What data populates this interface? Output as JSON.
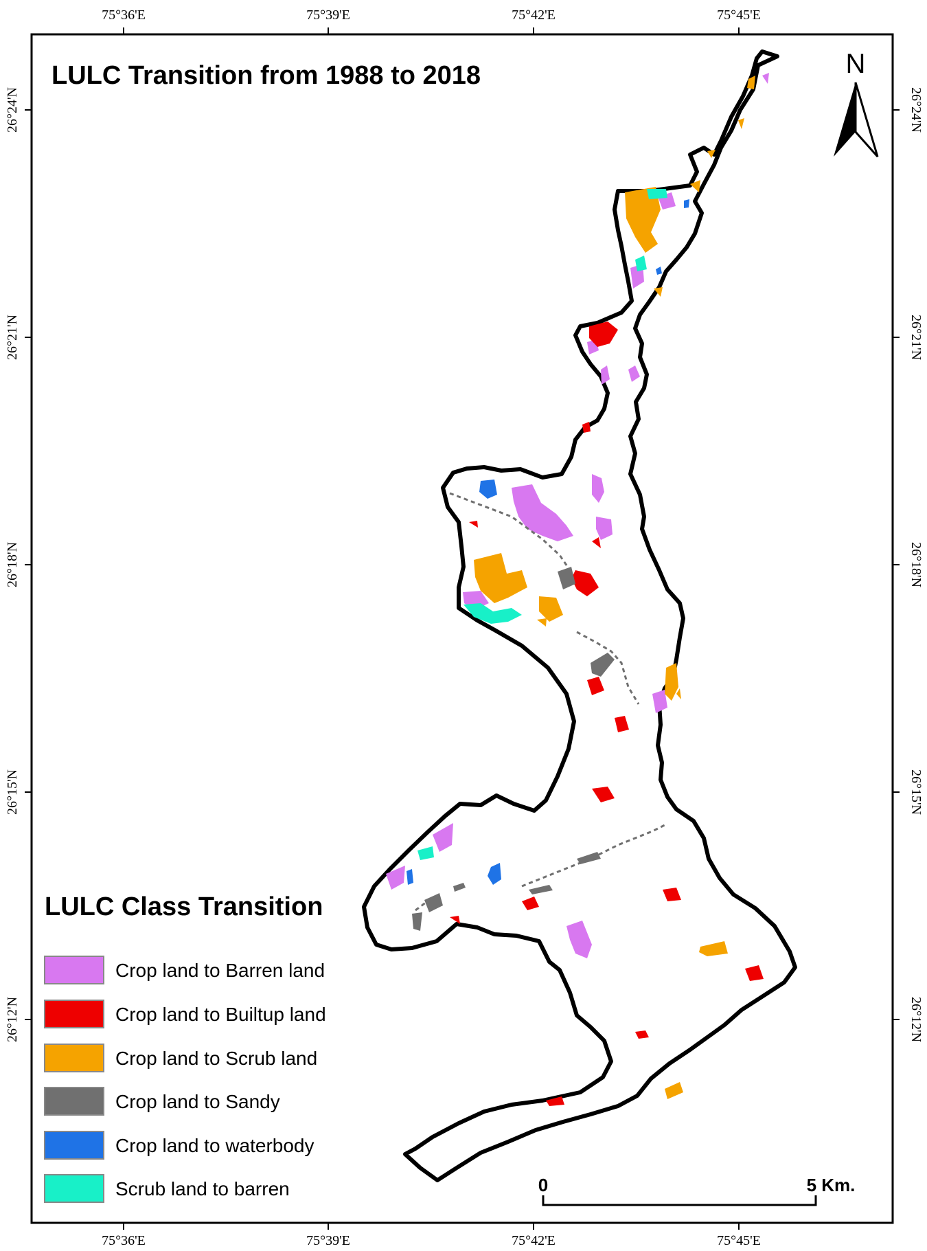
{
  "map": {
    "title": "LULC Transition from 1988 to 2018",
    "north_label": "N",
    "longitude_ticks": [
      "75°36'E",
      "75°39'E",
      "75°42'E",
      "75°45'E"
    ],
    "latitude_ticks": [
      "26°24'N",
      "26°21'N",
      "26°18'N",
      "26°15'N",
      "26°12'N"
    ],
    "scale_bar": {
      "start_label": "0",
      "end_label": "5 Km."
    }
  },
  "legend": {
    "title": "LULC Class Transition",
    "items": [
      {
        "label": "Crop land to Barren land",
        "color": "#d878f0"
      },
      {
        "label": "Crop land to Builtup land",
        "color": "#ee0000"
      },
      {
        "label": "Crop land to Scrub land",
        "color": "#f5a300"
      },
      {
        "label": "Crop land to Sandy",
        "color": "#707070"
      },
      {
        "label": "Crop land to waterbody",
        "color": "#1f73e6"
      },
      {
        "label": "Scrub land to barren",
        "color": "#18f0c8"
      }
    ]
  }
}
